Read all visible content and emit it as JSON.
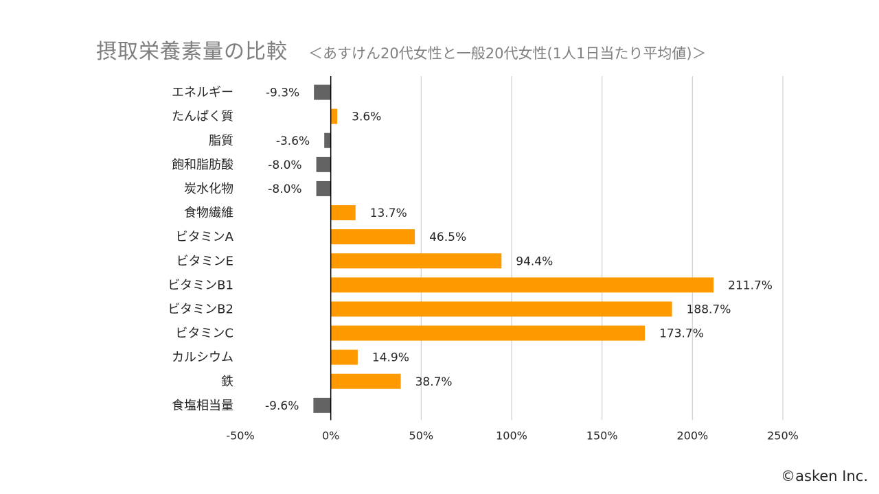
{
  "title": "摂取栄養素量の比較",
  "subtitle": "＜あすけん20代女性と一般20代女性(1人1日当たり平均値)＞",
  "copyright": "©asken Inc.",
  "colors": {
    "positive": "#ff9900",
    "negative": "#636363",
    "grid": "#d0d0d0",
    "axis": "#000000",
    "text": "#262626"
  },
  "chart_data": {
    "type": "bar",
    "orientation": "horizontal",
    "title": "摂取栄養素量の比較",
    "categories": [
      "エネルギー",
      "たんぱく質",
      "脂質",
      "飽和脂肪酸",
      "炭水化物",
      "食物繊維",
      "ビタミンA",
      "ビタミンE",
      "ビタミンB1",
      "ビタミンB2",
      "ビタミンC",
      "カルシウム",
      "鉄",
      "食塩相当量"
    ],
    "values": [
      -9.3,
      3.6,
      -3.6,
      -8.0,
      -8.0,
      13.7,
      46.5,
      94.4,
      211.7,
      188.7,
      173.7,
      14.9,
      38.7,
      -9.6
    ],
    "labels": [
      "-9.3%",
      "3.6%",
      "-3.6%",
      "-8.0%",
      "-8.0%",
      "13.7%",
      "46.5%",
      "94.4%",
      "211.7%",
      "188.7%",
      "173.7%",
      "14.9%",
      "38.7%",
      "-9.6%"
    ],
    "xlim": [
      -50,
      250
    ],
    "xticks": [
      -50,
      0,
      50,
      100,
      150,
      200,
      250
    ],
    "xtick_labels": [
      "-50%",
      "0%",
      "50%",
      "100%",
      "150%",
      "200%",
      "250%"
    ],
    "grid": true,
    "legend": "none"
  }
}
